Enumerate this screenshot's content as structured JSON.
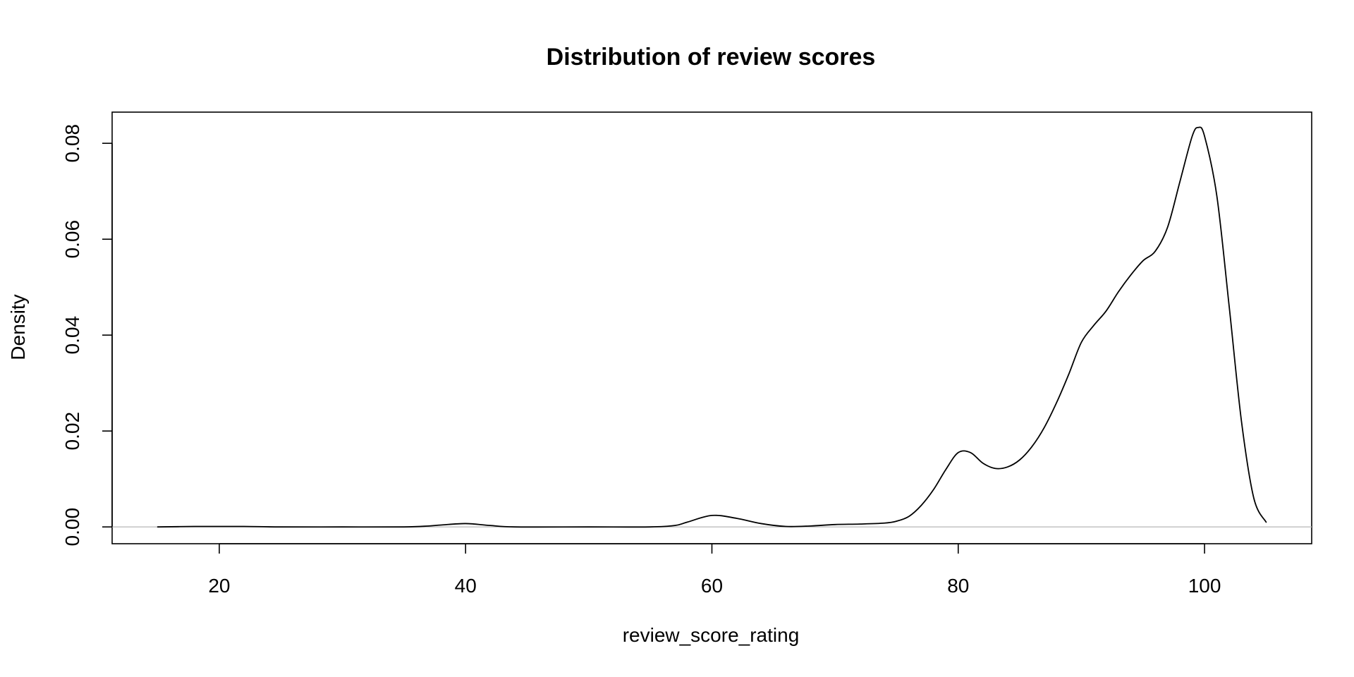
{
  "chart_data": {
    "type": "line",
    "title": "Distribution of review scores",
    "xlabel": "review_score_rating",
    "ylabel": "Density",
    "xlim": [
      11.3,
      108.7
    ],
    "ylim": [
      -0.0035,
      0.0865
    ],
    "x_ticks": [
      20,
      40,
      60,
      80,
      100
    ],
    "x_tick_labels": [
      "20",
      "40",
      "60",
      "80",
      "100"
    ],
    "y_ticks": [
      0.0,
      0.02,
      0.04,
      0.06,
      0.08
    ],
    "y_tick_labels": [
      "0.00",
      "0.02",
      "0.04",
      "0.06",
      "0.08"
    ],
    "grid": false,
    "zero_line": true,
    "series": [
      {
        "x": [
          15,
          18,
          20,
          22,
          25,
          30,
          35,
          37,
          38,
          40,
          42,
          44,
          50,
          55,
          57,
          58,
          60,
          62,
          64,
          66,
          68,
          70,
          72,
          74,
          75,
          76,
          77,
          78,
          79,
          80,
          81,
          82,
          83,
          84,
          85,
          86,
          87,
          88,
          89,
          90,
          91,
          92,
          93,
          94,
          95,
          96,
          97,
          98,
          99,
          99.5,
          100,
          101,
          102,
          103,
          104,
          105
        ],
        "y": [
          0.0,
          0.0001,
          0.0001,
          0.0001,
          0.0,
          0.0,
          0.0,
          0.0002,
          0.0004,
          0.0007,
          0.0003,
          0.0,
          0.0,
          0.0,
          0.0003,
          0.001,
          0.0024,
          0.0018,
          0.0007,
          0.0001,
          0.0002,
          0.0005,
          0.0006,
          0.0008,
          0.0012,
          0.0022,
          0.0045,
          0.0078,
          0.012,
          0.0155,
          0.0155,
          0.0133,
          0.0122,
          0.0125,
          0.014,
          0.0168,
          0.0208,
          0.026,
          0.032,
          0.0385,
          0.042,
          0.045,
          0.049,
          0.0525,
          0.0555,
          0.0575,
          0.0625,
          0.072,
          0.0815,
          0.0833,
          0.0815,
          0.069,
          0.046,
          0.022,
          0.006,
          0.001
        ]
      }
    ]
  }
}
